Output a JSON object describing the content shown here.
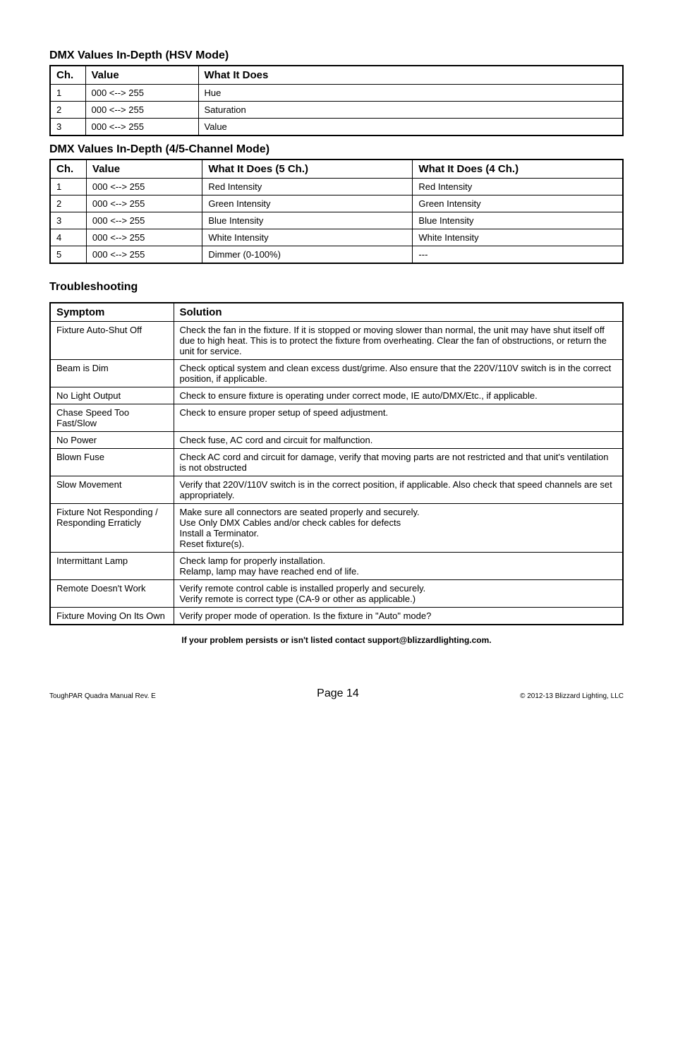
{
  "hsv_section": {
    "heading": "DMX Values In-Depth (HSV Mode)",
    "headers": [
      "Ch.",
      "Value",
      "What It Does"
    ],
    "rows": [
      [
        "1",
        "000 <--> 255",
        "Hue"
      ],
      [
        "2",
        "000 <--> 255",
        "Saturation"
      ],
      [
        "3",
        "000 <--> 255",
        "Value"
      ]
    ]
  },
  "ch45_section": {
    "heading": "DMX Values In-Depth (4/5-Channel Mode)",
    "headers": [
      "Ch.",
      "Value",
      "What It Does (5 Ch.)",
      "What It Does (4 Ch.)"
    ],
    "rows": [
      [
        "1",
        "000 <--> 255",
        "Red Intensity",
        "Red Intensity"
      ],
      [
        "2",
        "000 <--> 255",
        "Green Intensity",
        "Green Intensity"
      ],
      [
        "3",
        "000 <--> 255",
        "Blue Intensity",
        "Blue Intensity"
      ],
      [
        "4",
        "000 <--> 255",
        "White Intensity",
        "White Intensity"
      ],
      [
        "5",
        "000 <--> 255",
        "Dimmer (0-100%)",
        "---"
      ]
    ]
  },
  "troubleshooting": {
    "heading": "Troubleshooting",
    "headers": [
      "Symptom",
      "Solution"
    ],
    "rows": [
      [
        "Fixture Auto-Shut Off",
        "Check the fan in the fixture.  If it is stopped or moving slower than normal, the unit may have shut itself off due to high heat.  This is to protect the fixture from overheating.  Clear the fan of obstructions, or return the unit for service."
      ],
      [
        "Beam is Dim",
        "Check optical system and clean excess dust/grime.  Also ensure that the 220V/110V switch is in the correct position, if applicable."
      ],
      [
        "No Light Output",
        "Check to ensure fixture is operating under correct mode, IE auto/DMX/Etc., if applicable."
      ],
      [
        "Chase Speed Too Fast/Slow",
        "Check to ensure proper setup of speed adjustment."
      ],
      [
        "No Power",
        "Check fuse, AC cord and circuit for malfunction."
      ],
      [
        "Blown Fuse",
        "Check AC cord and circuit for damage, verify that moving parts are not restricted and that unit's ventilation is not obstructed"
      ],
      [
        "Slow Movement",
        "Verify that 220V/110V switch is in the correct position, if applicable.  Also check that speed channels are set appropriately."
      ],
      [
        "Fixture Not Responding / Responding Erraticly",
        "Make sure all connectors are seated properly and securely.\nUse Only DMX Cables and/or check cables for defects\nInstall a Terminator.\nReset fixture(s)."
      ],
      [
        "Intermittant Lamp",
        "Check lamp for properly installation.\nRelamp, lamp may have reached end of life."
      ],
      [
        "Remote Doesn't Work",
        "Verify remote control cable is installed properly and securely.\nVerify remote is correct type (CA-9 or other as applicable.)"
      ],
      [
        "Fixture Moving On Its Own",
        "Verify proper mode of operation.  Is the fixture in \"Auto\" mode?"
      ]
    ]
  },
  "footnote": "If your problem persists or isn't listed contact support@blizzardlighting.com.",
  "footer": {
    "left": "ToughPAR Quadra Manual Rev. E",
    "center": "Page 14",
    "right": "© 2012-13 Blizzard Lighting, LLC"
  }
}
